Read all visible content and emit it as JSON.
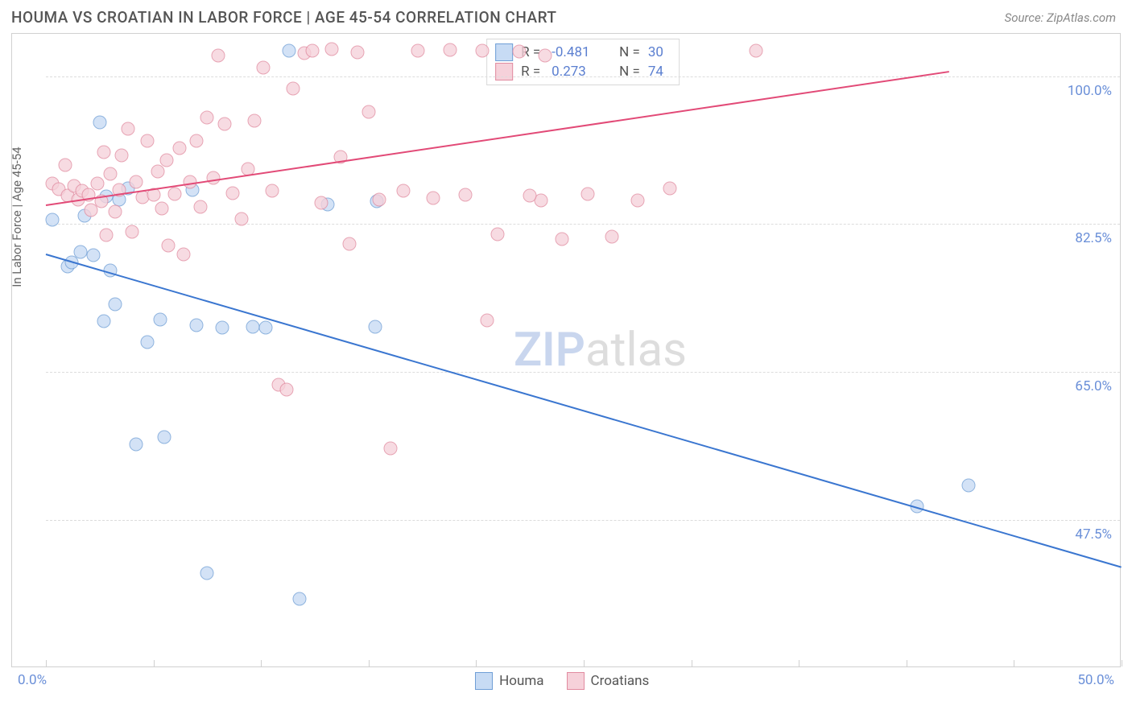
{
  "title": "HOUMA VS CROATIAN IN LABOR FORCE | AGE 45-54 CORRELATION CHART",
  "source": "Source: ZipAtlas.com",
  "y_axis_title": "In Labor Force | Age 45-54",
  "watermark": {
    "pre": "ZIP",
    "post": "atlas",
    "pre_color": "#c9d6ee",
    "post_color": "#dddddd"
  },
  "chart": {
    "type": "scatter",
    "xlim": [
      0,
      50
    ],
    "ylim": [
      30,
      105
    ],
    "x_ticks": [
      0,
      5,
      10,
      15,
      20,
      25,
      30,
      35,
      40,
      45,
      50
    ],
    "grid_y": [
      47.5,
      65.0,
      82.5,
      100.0
    ],
    "y_tick_labels": [
      "47.5%",
      "65.0%",
      "82.5%",
      "100.0%"
    ],
    "x_label_min": "0.0%",
    "x_label_max": "50.0%",
    "grid_color": "#dcdcdc",
    "background_color": "#ffffff",
    "border_color": "#d0d0d0",
    "point_radius": 8.5,
    "point_border_width": 1.4,
    "series": [
      {
        "name": "Houma",
        "fill": "#c7dbf4",
        "stroke": "#6f9ed6",
        "R": "-0.481",
        "N": "30",
        "trend": {
          "x1": 0,
          "y1": 79,
          "x2": 50,
          "y2": 42,
          "color": "#3a76d0",
          "width": 2
        },
        "points": [
          [
            0.3,
            83
          ],
          [
            1.0,
            77.5
          ],
          [
            1.2,
            78
          ],
          [
            1.6,
            79.2
          ],
          [
            2.2,
            78.8
          ],
          [
            2.5,
            94.5
          ],
          [
            3.0,
            77
          ],
          [
            2.8,
            85.8
          ],
          [
            3.4,
            85.4
          ],
          [
            3.2,
            73
          ],
          [
            1.8,
            83.5
          ],
          [
            2.7,
            71
          ],
          [
            4.2,
            56.5
          ],
          [
            5.3,
            71.2
          ],
          [
            4.7,
            68.5
          ],
          [
            3.8,
            86.7
          ],
          [
            5.5,
            57.3
          ],
          [
            7.0,
            70.5
          ],
          [
            6.8,
            86.5
          ],
          [
            8.2,
            70.3
          ],
          [
            7.5,
            41.2
          ],
          [
            9.6,
            70.4
          ],
          [
            10.2,
            70.3
          ],
          [
            11.3,
            103
          ],
          [
            11.8,
            38.2
          ],
          [
            13.1,
            84.8
          ],
          [
            15.3,
            70.4
          ],
          [
            15.4,
            85.2
          ],
          [
            40.5,
            49.1
          ],
          [
            42.9,
            51.6
          ]
        ]
      },
      {
        "name": "Croatians",
        "fill": "#f6d1da",
        "stroke": "#e18ba0",
        "R": "0.273",
        "N": "74",
        "trend": {
          "x1": 0,
          "y1": 84.8,
          "x2": 42,
          "y2": 100.6,
          "color": "#e24a77",
          "width": 2
        },
        "points": [
          [
            0.3,
            87.3
          ],
          [
            0.6,
            86.6
          ],
          [
            0.9,
            89.5
          ],
          [
            1.0,
            85.9
          ],
          [
            1.3,
            87.0
          ],
          [
            1.5,
            85.4
          ],
          [
            1.7,
            86.4
          ],
          [
            2.0,
            86.0
          ],
          [
            2.1,
            84.2
          ],
          [
            2.4,
            87.3
          ],
          [
            2.6,
            85.2
          ],
          [
            2.7,
            91.0
          ],
          [
            2.8,
            81.2
          ],
          [
            3.0,
            88.4
          ],
          [
            3.2,
            84.0
          ],
          [
            3.4,
            86.5
          ],
          [
            3.5,
            90.6
          ],
          [
            3.8,
            93.8
          ],
          [
            4.0,
            81.6
          ],
          [
            4.2,
            87.5
          ],
          [
            4.5,
            85.7
          ],
          [
            4.7,
            92.3
          ],
          [
            5.0,
            86.0
          ],
          [
            5.2,
            88.7
          ],
          [
            5.4,
            84.3
          ],
          [
            5.6,
            90.1
          ],
          [
            5.7,
            80.0
          ],
          [
            6.0,
            86.1
          ],
          [
            6.2,
            91.5
          ],
          [
            6.4,
            78.9
          ],
          [
            6.7,
            87.5
          ],
          [
            7.0,
            92.3
          ],
          [
            7.2,
            84.5
          ],
          [
            7.5,
            95.1
          ],
          [
            7.8,
            88.0
          ],
          [
            8.0,
            102.4
          ],
          [
            8.3,
            94.3
          ],
          [
            8.7,
            86.2
          ],
          [
            9.1,
            83.1
          ],
          [
            9.4,
            89.0
          ],
          [
            9.7,
            94.7
          ],
          [
            10.1,
            101.0
          ],
          [
            10.5,
            86.4
          ],
          [
            10.8,
            63.5
          ],
          [
            11.2,
            62.9
          ],
          [
            11.5,
            98.5
          ],
          [
            12.0,
            102.7
          ],
          [
            12.4,
            103.0
          ],
          [
            12.8,
            85.0
          ],
          [
            13.3,
            103.2
          ],
          [
            13.7,
            90.4
          ],
          [
            14.1,
            80.2
          ],
          [
            14.5,
            102.8
          ],
          [
            15.0,
            95.8
          ],
          [
            15.5,
            85.4
          ],
          [
            16.0,
            56.0
          ],
          [
            16.6,
            86.4
          ],
          [
            17.3,
            103.0
          ],
          [
            18.0,
            85.6
          ],
          [
            18.8,
            103.1
          ],
          [
            19.5,
            86.0
          ],
          [
            20.3,
            103.0
          ],
          [
            21.0,
            81.3
          ],
          [
            22.0,
            102.9
          ],
          [
            23.0,
            85.3
          ],
          [
            24.0,
            80.7
          ],
          [
            25.2,
            86.1
          ],
          [
            26.3,
            81.0
          ],
          [
            27.5,
            85.3
          ],
          [
            29.0,
            86.7
          ],
          [
            20.5,
            71.1
          ],
          [
            22.5,
            85.9
          ],
          [
            33.0,
            103.0
          ],
          [
            23.2,
            102.4
          ]
        ]
      }
    ]
  },
  "legend_bottom": [
    {
      "label": "Houma",
      "fill": "#c7dbf4",
      "stroke": "#6f9ed6"
    },
    {
      "label": "Croatians",
      "fill": "#f6d1da",
      "stroke": "#e18ba0"
    }
  ]
}
